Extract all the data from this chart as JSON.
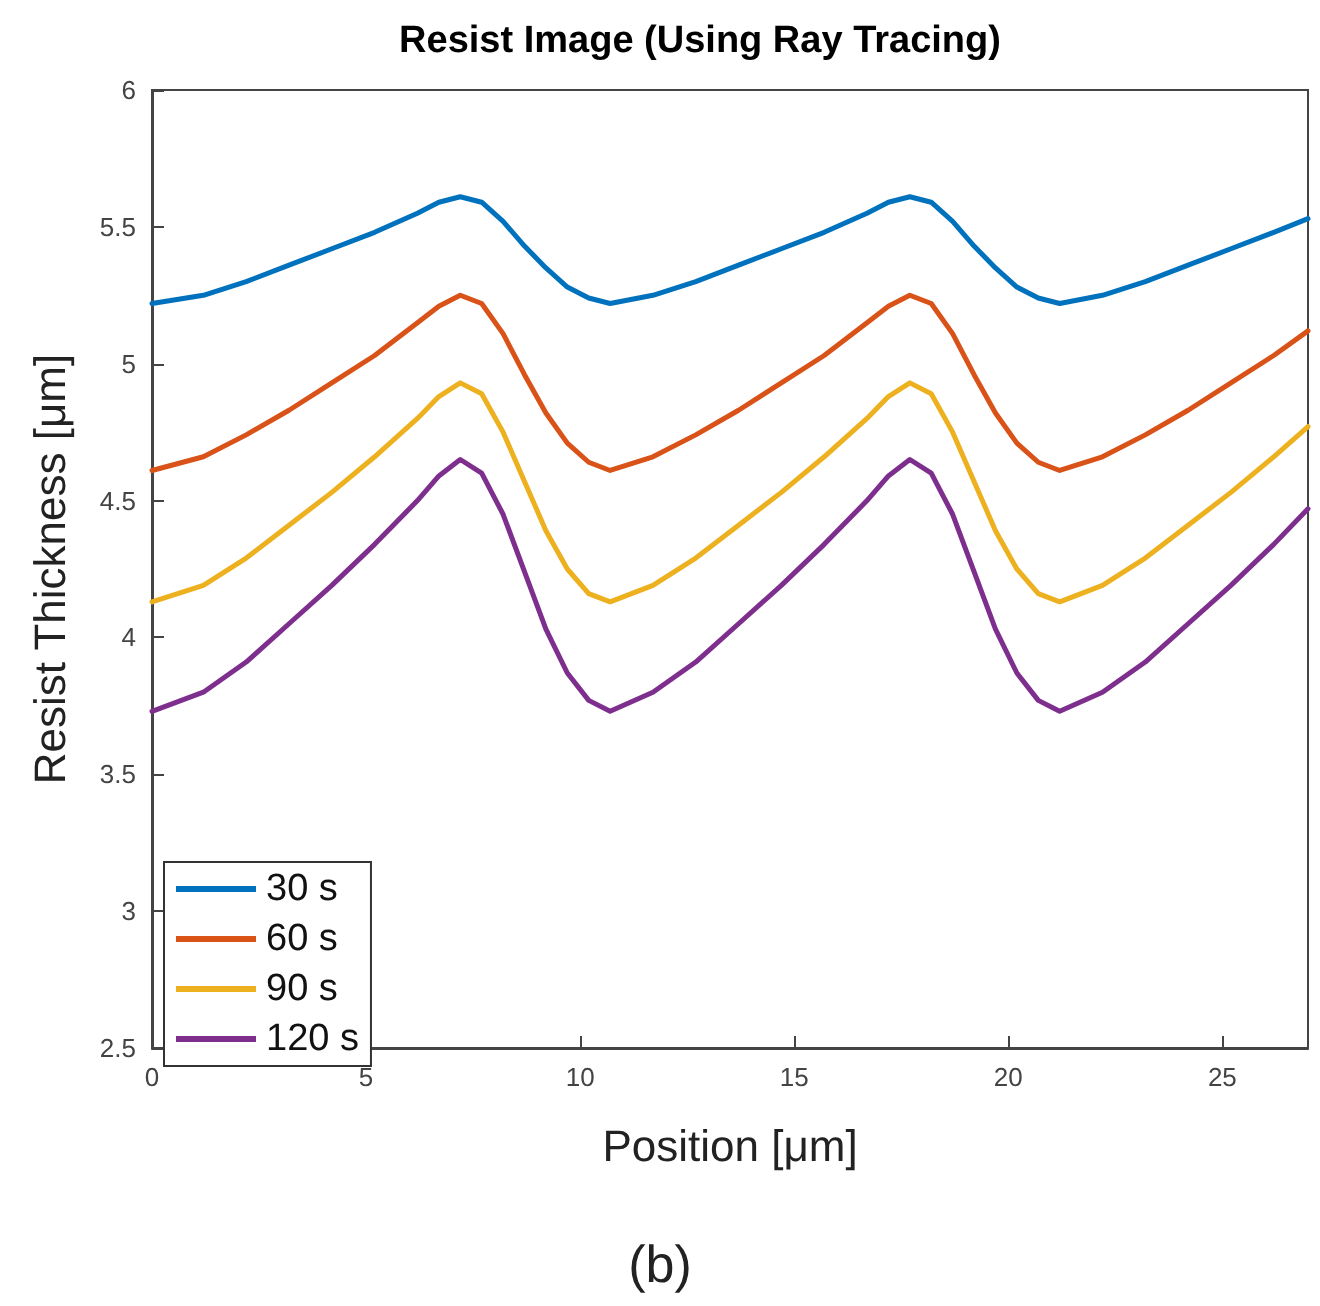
{
  "chart_data": {
    "type": "line",
    "title": "Resist Image (Using Ray Tracing)",
    "xlabel": "Position [μm]",
    "ylabel": "Resist Thickness [μm]",
    "annotations": [
      "(b)"
    ],
    "x": [
      0,
      1.2,
      2.2,
      3.2,
      4.2,
      5.2,
      6.2,
      6.7,
      7.2,
      7.7,
      8.2,
      8.7,
      9.2,
      9.7,
      10.2,
      10.7,
      11.7,
      12.7,
      13.7,
      14.7,
      15.7,
      16.7,
      17.2,
      17.7,
      18.2,
      18.7,
      19.2,
      19.7,
      20.2,
      20.7,
      21.2,
      22.2,
      23.2,
      24.2,
      25.2,
      26.2,
      27
    ],
    "series": [
      {
        "name": "30 s",
        "color": "#0072bd",
        "values": [
          5.22,
          5.25,
          5.3,
          5.36,
          5.42,
          5.48,
          5.55,
          5.59,
          5.61,
          5.59,
          5.52,
          5.43,
          5.35,
          5.28,
          5.24,
          5.22,
          5.25,
          5.3,
          5.36,
          5.42,
          5.48,
          5.55,
          5.59,
          5.61,
          5.59,
          5.52,
          5.43,
          5.35,
          5.28,
          5.24,
          5.22,
          5.25,
          5.3,
          5.36,
          5.42,
          5.48,
          5.53
        ]
      },
      {
        "name": "60 s",
        "color": "#d95319",
        "values": [
          4.61,
          4.66,
          4.74,
          4.83,
          4.93,
          5.03,
          5.15,
          5.21,
          5.25,
          5.22,
          5.11,
          4.96,
          4.82,
          4.71,
          4.64,
          4.61,
          4.66,
          4.74,
          4.83,
          4.93,
          5.03,
          5.15,
          5.21,
          5.25,
          5.22,
          5.11,
          4.96,
          4.82,
          4.71,
          4.64,
          4.61,
          4.66,
          4.74,
          4.83,
          4.93,
          5.03,
          5.12
        ]
      },
      {
        "name": "90 s",
        "color": "#edb120",
        "values": [
          4.13,
          4.19,
          4.29,
          4.41,
          4.53,
          4.66,
          4.8,
          4.88,
          4.93,
          4.89,
          4.75,
          4.57,
          4.39,
          4.25,
          4.16,
          4.13,
          4.19,
          4.29,
          4.41,
          4.53,
          4.66,
          4.8,
          4.88,
          4.93,
          4.89,
          4.75,
          4.57,
          4.39,
          4.25,
          4.16,
          4.13,
          4.19,
          4.29,
          4.41,
          4.53,
          4.66,
          4.77
        ]
      },
      {
        "name": "120 s",
        "color": "#7e2f8e",
        "values": [
          3.73,
          3.8,
          3.91,
          4.05,
          4.19,
          4.34,
          4.5,
          4.59,
          4.65,
          4.6,
          4.45,
          4.24,
          4.03,
          3.87,
          3.77,
          3.73,
          3.8,
          3.91,
          4.05,
          4.19,
          4.34,
          4.5,
          4.59,
          4.65,
          4.6,
          4.45,
          4.24,
          4.03,
          3.87,
          3.77,
          3.73,
          3.8,
          3.91,
          4.05,
          4.19,
          4.34,
          4.47
        ]
      }
    ],
    "xlim": [
      0,
      27
    ],
    "xticks": [
      0,
      5,
      10,
      15,
      20,
      25
    ],
    "ylim": [
      2.5,
      6
    ],
    "yticks": [
      2.5,
      3,
      3.5,
      4,
      4.5,
      5,
      5.5,
      6
    ],
    "grid": false,
    "legend": "bottom left",
    "marker": "none",
    "line_style": "solid"
  }
}
